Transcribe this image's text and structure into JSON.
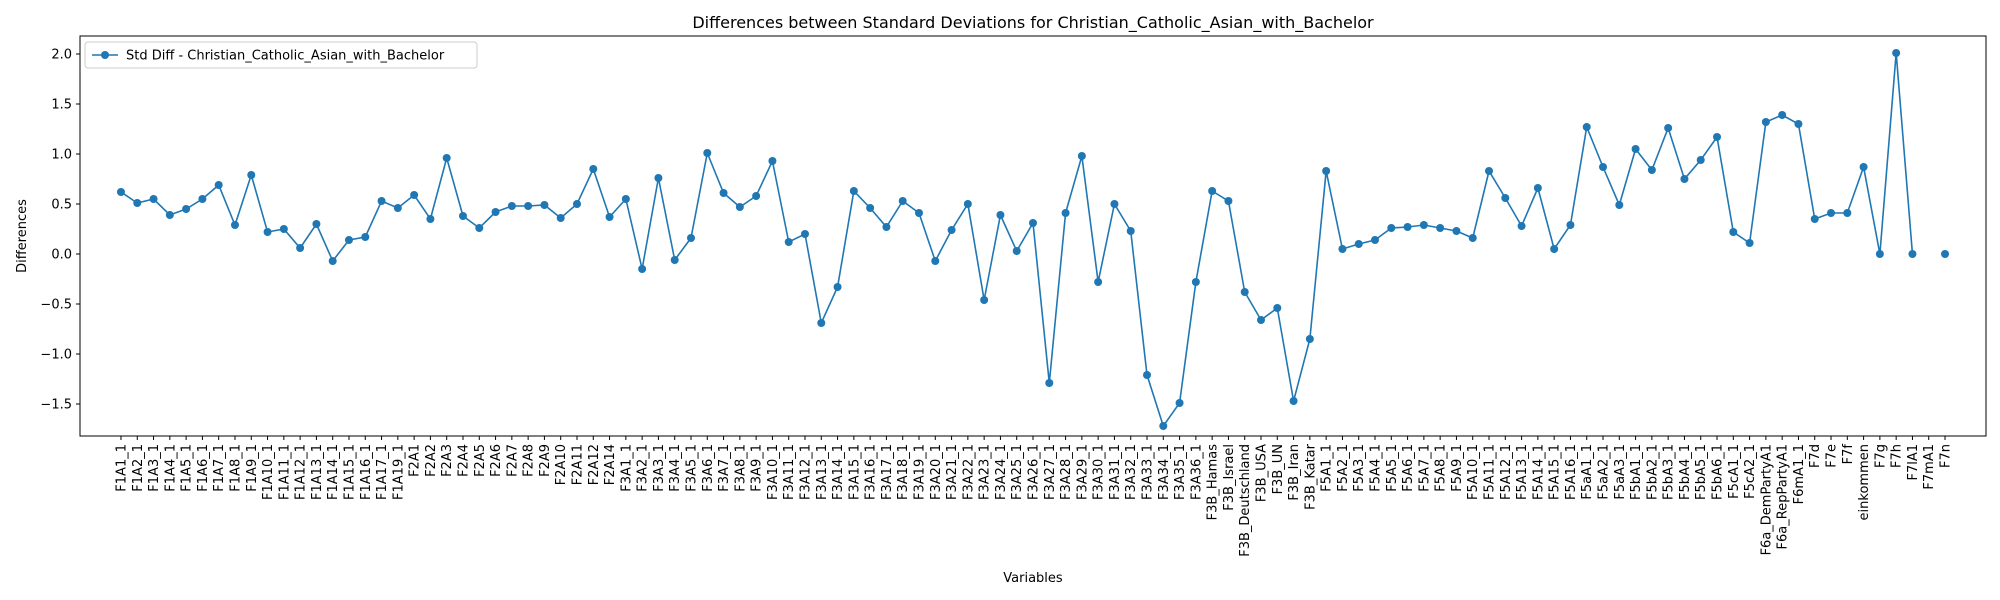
{
  "chart_data": {
    "type": "line",
    "title": "Differences between Standard Deviations for Christian_Catholic_Asian_with_Bachelor",
    "xlabel": "Variables",
    "ylabel": "Differences",
    "ylim": [
      -1.82,
      2.18
    ],
    "yticks": [
      -1.5,
      -1.0,
      -0.5,
      0.0,
      0.5,
      1.0,
      1.5,
      2.0
    ],
    "ytick_labels": [
      "−1.5",
      "−1.0",
      "−0.5",
      "0.0",
      "0.5",
      "1.0",
      "1.5",
      "2.0"
    ],
    "grid": false,
    "legend_position": "top-left",
    "color": "#1f77b4",
    "categories": [
      "F1A1_1",
      "F1A2_1",
      "F1A3_1",
      "F1A4_1",
      "F1A5_1",
      "F1A6_1",
      "F1A7_1",
      "F1A8_1",
      "F1A9_1",
      "F1A10_1",
      "F1A11_1",
      "F1A12_1",
      "F1A13_1",
      "F1A14_1",
      "F1A15_1",
      "F1A16_1",
      "F1A17_1",
      "F1A19_1",
      "F2A1",
      "F2A2",
      "F2A3",
      "F2A4",
      "F2A5",
      "F2A6",
      "F2A7",
      "F2A8",
      "F2A9",
      "F2A10",
      "F2A11",
      "F2A12",
      "F2A14",
      "F3A1_1",
      "F3A2_1",
      "F3A3_1",
      "F3A4_1",
      "F3A5_1",
      "F3A6_1",
      "F3A7_1",
      "F3A8_1",
      "F3A9_1",
      "F3A10_1",
      "F3A11_1",
      "F3A12_1",
      "F3A13_1",
      "F3A14_1",
      "F3A15_1",
      "F3A16_1",
      "F3A17_1",
      "F3A18_1",
      "F3A19_1",
      "F3A20_1",
      "F3A21_1",
      "F3A22_1",
      "F3A23_1",
      "F3A24_1",
      "F3A25_1",
      "F3A26_1",
      "F3A27_1",
      "F3A28_1",
      "F3A29_1",
      "F3A30_1",
      "F3A31_1",
      "F3A32_1",
      "F3A33_1",
      "F3A34_1",
      "F3A35_1",
      "F3A36_1",
      "F3B_Hamas",
      "F3B_Israel",
      "F3B_Deutschland",
      "F3B_USA",
      "F3B_UN",
      "F3B_Iran",
      "F3B_Katar",
      "F5A1_1",
      "F5A2_1",
      "F5A3_1",
      "F5A4_1",
      "F5A5_1",
      "F5A6_1",
      "F5A7_1",
      "F5A8_1",
      "F5A9_1",
      "F5A10_1",
      "F5A11_1",
      "F5A12_1",
      "F5A13_1",
      "F5A14_1",
      "F5A15_1",
      "F5A16_1",
      "F5aA1_1",
      "F5aA2_1",
      "F5aA3_1",
      "F5bA1_1",
      "F5bA2_1",
      "F5bA3_1",
      "F5bA4_1",
      "F5bA5_1",
      "F5bA6_1",
      "F5cA1_1",
      "F5cA2_1",
      "F6a_DemPartyA1",
      "F6a_RepPartyA1",
      "F6mA1_1",
      "F7d",
      "F7e",
      "F7f",
      "einkommen",
      "F7g",
      "F7h",
      "F7lA1",
      "F7mA1",
      "F7n"
    ],
    "series": [
      {
        "name": "Std Diff - Christian_Catholic_Asian_with_Bachelor",
        "values": [
          0.62,
          0.51,
          0.55,
          0.39,
          0.45,
          0.55,
          0.69,
          0.29,
          0.79,
          0.22,
          0.25,
          0.06,
          0.3,
          -0.07,
          0.14,
          0.17,
          0.53,
          0.46,
          0.59,
          0.35,
          0.96,
          0.38,
          0.26,
          0.42,
          0.48,
          0.48,
          0.49,
          0.36,
          0.5,
          0.85,
          0.37,
          0.55,
          -0.15,
          0.76,
          -0.06,
          0.16,
          1.01,
          0.61,
          0.47,
          0.58,
          0.93,
          0.12,
          0.2,
          -0.69,
          -0.33,
          0.63,
          0.46,
          0.27,
          0.53,
          0.41,
          -0.07,
          0.24,
          0.5,
          -0.46,
          0.39,
          0.03,
          0.31,
          -1.29,
          0.41,
          0.98,
          -0.28,
          0.5,
          0.23,
          -1.21,
          -1.72,
          -1.49,
          -0.28,
          0.63,
          0.53,
          -0.38,
          -0.66,
          -0.54,
          -1.47,
          -0.85,
          0.83,
          0.05,
          0.1,
          0.14,
          0.26,
          0.27,
          0.29,
          0.26,
          0.23,
          0.16,
          0.83,
          0.56,
          0.28,
          0.66,
          0.05,
          0.29,
          1.27,
          0.87,
          0.49,
          1.05,
          0.84,
          1.26,
          0.75,
          0.94,
          1.17,
          0.22,
          0.11,
          1.32,
          1.39,
          1.3,
          0.35,
          0.41,
          0.41,
          0.87,
          0.0,
          2.01,
          0.0,
          null,
          0.0
        ]
      }
    ]
  }
}
